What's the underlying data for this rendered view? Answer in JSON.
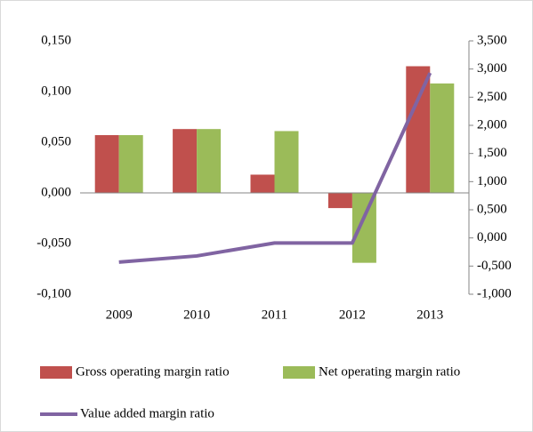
{
  "chart_data": {
    "type": "bar-line",
    "categories": [
      "2009",
      "2010",
      "2011",
      "2012",
      "2013"
    ],
    "series": [
      {
        "name": "Gross operating margin ratio",
        "color": "#c0504d",
        "type": "bar",
        "values": [
          0.057,
          0.063,
          0.018,
          -0.015,
          0.125
        ]
      },
      {
        "name": "Net operating margin ratio",
        "color": "#9bbb59",
        "type": "bar",
        "values": [
          0.057,
          0.063,
          0.061,
          -0.069,
          0.108
        ]
      },
      {
        "name": "Value added margin ratio",
        "color": "#8064a2",
        "type": "line",
        "axis": "y2",
        "values": [
          -0.43,
          -0.32,
          -0.09,
          -0.09,
          2.93
        ]
      }
    ],
    "ylim": [
      -0.1,
      0.15
    ],
    "yticks": [
      {
        "value": -0.1,
        "label": "-0,100"
      },
      {
        "value": -0.05,
        "label": "-0,050"
      },
      {
        "value": 0,
        "label": "0,000"
      },
      {
        "value": 0.05,
        "label": "0,050"
      },
      {
        "value": 0.1,
        "label": "0,100"
      },
      {
        "value": 0.15,
        "label": "0,150"
      }
    ],
    "y2lim": [
      -1,
      3.5
    ],
    "y2ticks": [
      {
        "value": -1,
        "label": "-1,000"
      },
      {
        "value": -0.5,
        "label": "-0,500"
      },
      {
        "value": 0,
        "label": "0,000"
      },
      {
        "value": 0.5,
        "label": "0,500"
      },
      {
        "value": 1,
        "label": "1,000"
      },
      {
        "value": 1.5,
        "label": "1,500"
      },
      {
        "value": 2,
        "label": "2,000"
      },
      {
        "value": 2.5,
        "label": "2,500"
      },
      {
        "value": 3,
        "label": "3,000"
      },
      {
        "value": 3.5,
        "label": "3,500"
      }
    ],
    "legend": "bottom"
  }
}
